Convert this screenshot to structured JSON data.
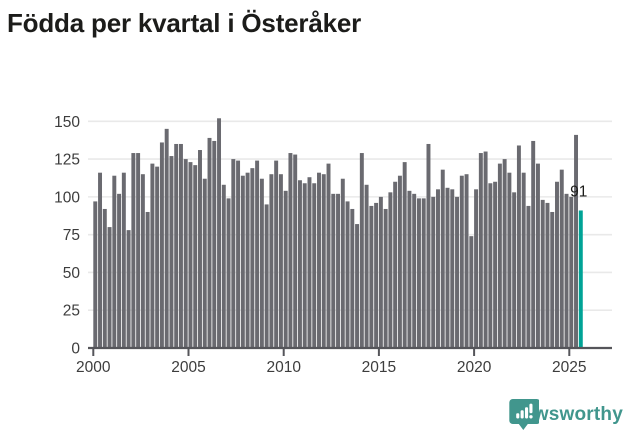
{
  "title": "Födda per kvartal i Österåker",
  "annotation": {
    "label": "91",
    "index": 102
  },
  "branding": {
    "name": "Newsworthy",
    "icon": "speech-bubble-bar-chart-icon"
  },
  "colors": {
    "bar": "#6a6a70",
    "highlight": "#00a396",
    "title": "#1c1c1a",
    "axis_label": "#3d3d3d",
    "gridline": "#e9e9e9",
    "axis_line": "#55555a",
    "annotation_text": "#1c1c1a",
    "brand": "#41968d",
    "background": "#ffffff"
  },
  "chart_data": {
    "type": "bar",
    "title": "Födda per kvartal i Österåker",
    "xlabel": "",
    "ylabel": "",
    "ylim": [
      0,
      155
    ],
    "y_ticks": [
      0,
      25,
      50,
      75,
      100,
      125,
      150
    ],
    "x_tick_labels": [
      "2000",
      "2005",
      "2010",
      "2015",
      "2020",
      "2025"
    ],
    "grid": true,
    "legend": "none",
    "highlight_last_bar": true,
    "categories": [
      "2000 Q1",
      "2000 Q2",
      "2000 Q3",
      "2000 Q4",
      "2001 Q1",
      "2001 Q2",
      "2001 Q3",
      "2001 Q4",
      "2002 Q1",
      "2002 Q2",
      "2002 Q3",
      "2002 Q4",
      "2003 Q1",
      "2003 Q2",
      "2003 Q3",
      "2003 Q4",
      "2004 Q1",
      "2004 Q2",
      "2004 Q3",
      "2004 Q4",
      "2005 Q1",
      "2005 Q2",
      "2005 Q3",
      "2005 Q4",
      "2006 Q1",
      "2006 Q2",
      "2006 Q3",
      "2006 Q4",
      "2007 Q1",
      "2007 Q2",
      "2007 Q3",
      "2007 Q4",
      "2008 Q1",
      "2008 Q2",
      "2008 Q3",
      "2008 Q4",
      "2009 Q1",
      "2009 Q2",
      "2009 Q3",
      "2009 Q4",
      "2010 Q1",
      "2010 Q2",
      "2010 Q3",
      "2010 Q4",
      "2011 Q1",
      "2011 Q2",
      "2011 Q3",
      "2011 Q4",
      "2012 Q1",
      "2012 Q2",
      "2012 Q3",
      "2012 Q4",
      "2013 Q1",
      "2013 Q2",
      "2013 Q3",
      "2013 Q4",
      "2014 Q1",
      "2014 Q2",
      "2014 Q3",
      "2014 Q4",
      "2015 Q1",
      "2015 Q2",
      "2015 Q3",
      "2015 Q4",
      "2016 Q1",
      "2016 Q2",
      "2016 Q3",
      "2016 Q4",
      "2017 Q1",
      "2017 Q2",
      "2017 Q3",
      "2017 Q4",
      "2018 Q1",
      "2018 Q2",
      "2018 Q3",
      "2018 Q4",
      "2019 Q1",
      "2019 Q2",
      "2019 Q3",
      "2019 Q4",
      "2020 Q1",
      "2020 Q2",
      "2020 Q3",
      "2020 Q4",
      "2021 Q1",
      "2021 Q2",
      "2021 Q3",
      "2021 Q4",
      "2022 Q1",
      "2022 Q2",
      "2022 Q3",
      "2022 Q4",
      "2023 Q1",
      "2023 Q2",
      "2023 Q3",
      "2023 Q4",
      "2024 Q1",
      "2024 Q2",
      "2024 Q3",
      "2024 Q4",
      "2025 Q1",
      "2025 Q2",
      "2025 Q3"
    ],
    "values": [
      97,
      116,
      92,
      80,
      114,
      102,
      116,
      78,
      129,
      129,
      115,
      90,
      122,
      120,
      136,
      145,
      127,
      135,
      135,
      125,
      123,
      121,
      131,
      112,
      139,
      137,
      152,
      108,
      99,
      125,
      124,
      114,
      116,
      119,
      124,
      112,
      95,
      115,
      124,
      115,
      104,
      129,
      128,
      111,
      109,
      113,
      109,
      116,
      115,
      122,
      102,
      102,
      112,
      97,
      92,
      82,
      129,
      108,
      94,
      96,
      100,
      92,
      103,
      110,
      114,
      123,
      104,
      102,
      99,
      99,
      135,
      100,
      105,
      118,
      106,
      105,
      100,
      114,
      115,
      74,
      105,
      129,
      130,
      109,
      110,
      122,
      125,
      116,
      103,
      134,
      116,
      94,
      137,
      122,
      98,
      96,
      90,
      110,
      118,
      102,
      100,
      141,
      91
    ]
  }
}
